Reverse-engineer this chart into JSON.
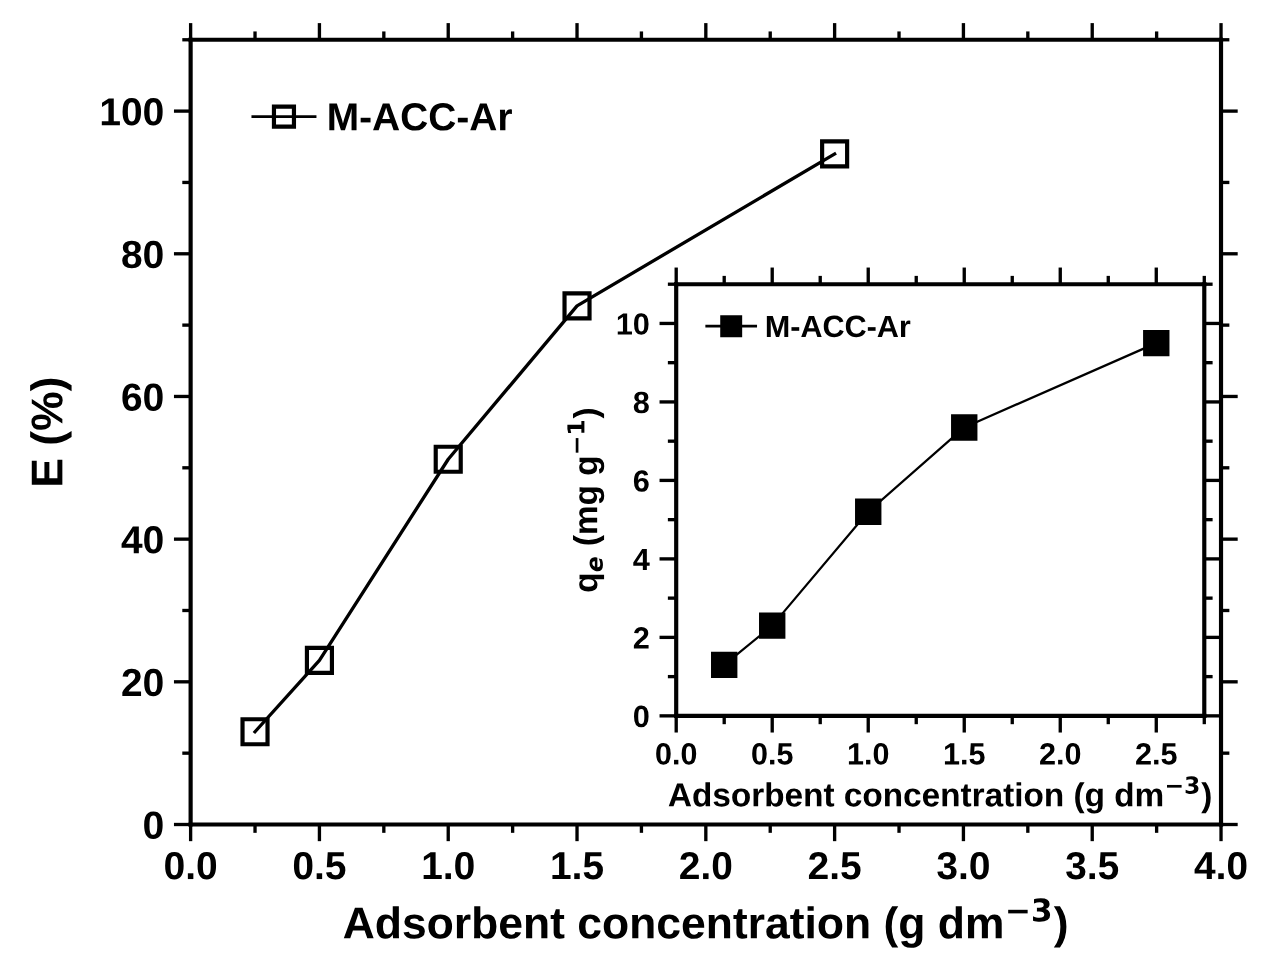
{
  "chart_data": [
    {
      "type": "line",
      "xlabel": "Adsorbent concentration (g dm$^{−3}$)",
      "ylabel": "E (%)",
      "x": [
        0.25,
        0.5,
        1.0,
        1.5,
        2.5
      ],
      "series": [
        {
          "name": "M-ACC-Ar",
          "color": "#000000",
          "values": [
            13,
            23,
            51.2,
            72.7,
            94
          ]
        }
      ],
      "xlim": [
        0,
        4
      ],
      "xticks": [
        {
          "value": 0,
          "label": "0.0"
        },
        0.5,
        {
          "value": 1,
          "label": "1.0"
        },
        1.5,
        {
          "value": 2,
          "label": "2.0"
        },
        2.5,
        {
          "value": 3,
          "label": "3.0"
        },
        3.5,
        {
          "value": 4,
          "label": "4.0"
        }
      ],
      "ylim": [
        0,
        110
      ],
      "yticks": [
        0,
        20,
        40,
        60,
        80,
        100
      ],
      "marker": "square",
      "line_style": "solid",
      "legend": "top left",
      "grid": false
    },
    {
      "type": "line",
      "xlabel": "Adsorbent concentration (g dm$^{−3}$)",
      "ylabel": "q$_{e}$ (mg g$^{−1}$)",
      "x": [
        0.25,
        0.5,
        1.0,
        1.5,
        2.5
      ],
      "series": [
        {
          "name": "M-ACC-Ar",
          "color": "#000000",
          "values": [
            1.3,
            2.3,
            5.2,
            7.35,
            9.5
          ]
        }
      ],
      "xlim": [
        0,
        2.75
      ],
      "xticks": [
        {
          "value": 0,
          "label": "0.0"
        },
        0.5,
        {
          "value": 1,
          "label": "1.0"
        },
        1.5,
        {
          "value": 2,
          "label": "2.0"
        },
        2.5
      ],
      "ylim": [
        0,
        11
      ],
      "yticks": [
        0,
        2,
        4,
        6,
        8,
        10
      ],
      "marker": "square",
      "line_style": "solid",
      "legend": "top left",
      "grid": false
    }
  ]
}
